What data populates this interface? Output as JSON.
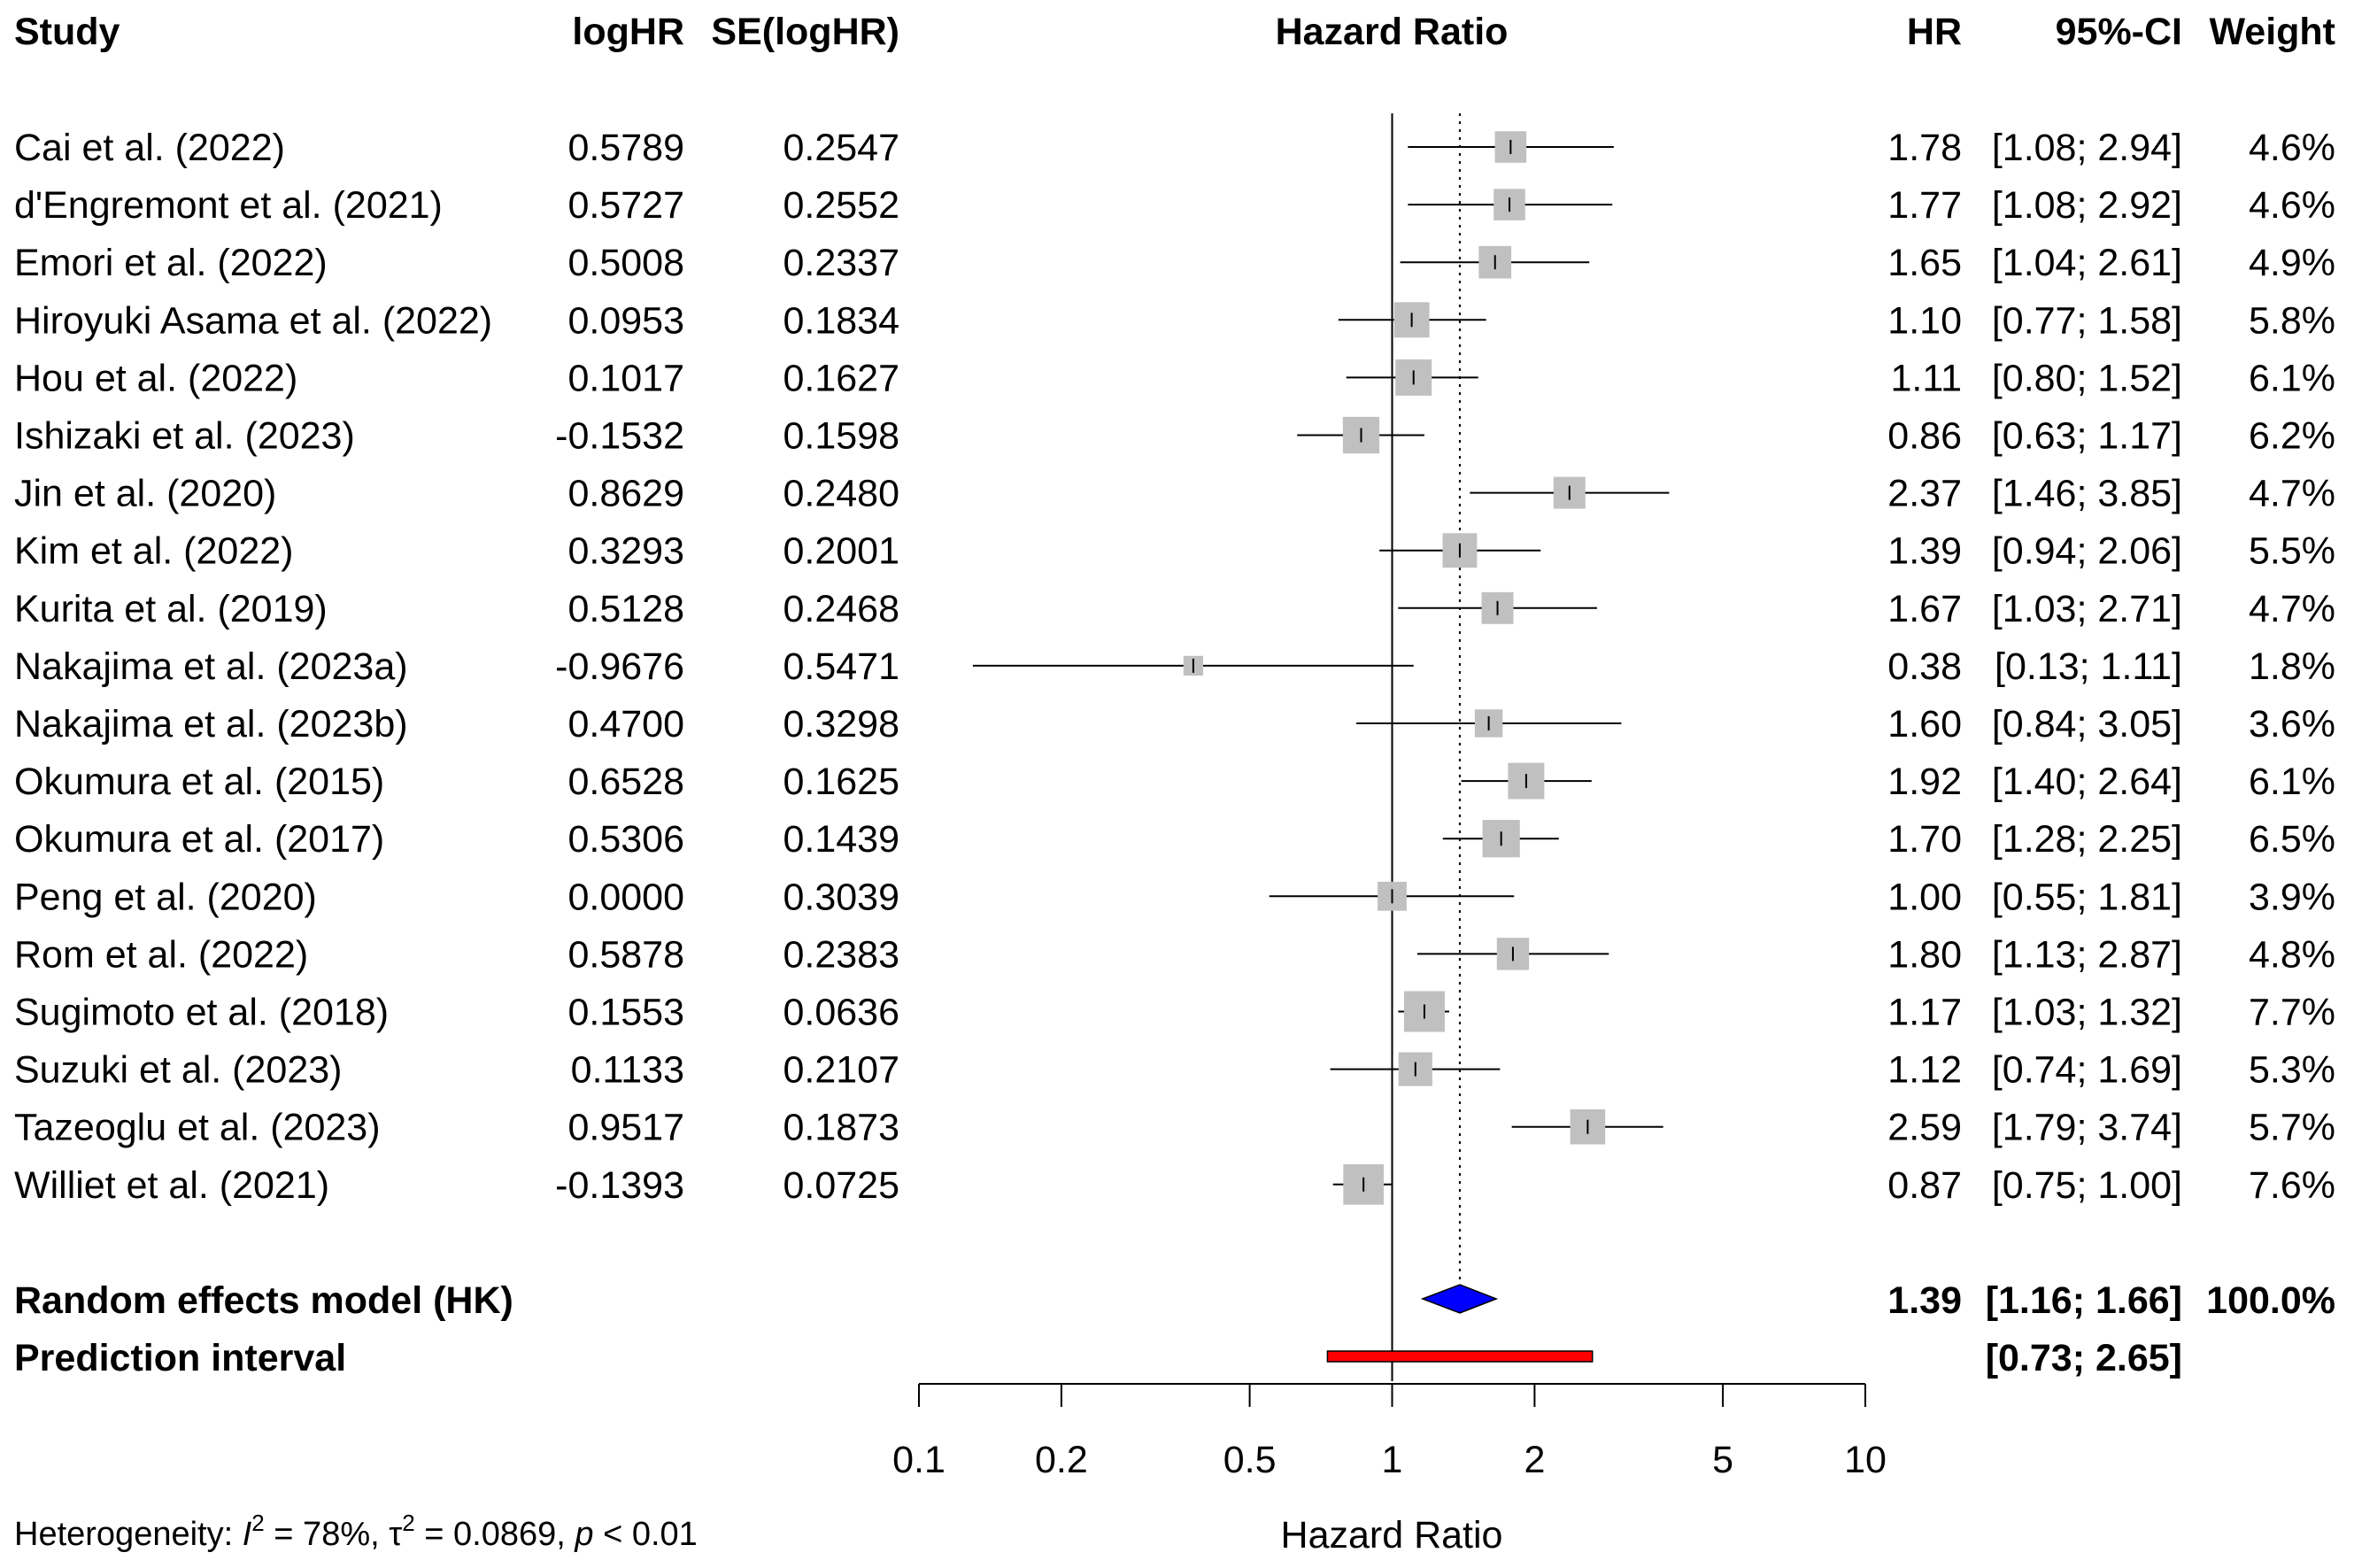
{
  "chart_data": {
    "type": "forest",
    "title": "Hazard Ratio",
    "xlabel": "Hazard Ratio",
    "xscale": "log",
    "xlim": [
      0.1,
      10
    ],
    "reference_line": 1,
    "pooled_line": 1.39,
    "ticks": [
      {
        "value": 0.1,
        "label": "0.1"
      },
      {
        "value": 0.2,
        "label": "0.2"
      },
      {
        "value": 0.5,
        "label": "0.5"
      },
      {
        "value": 1,
        "label": "1"
      },
      {
        "value": 2,
        "label": "2"
      },
      {
        "value": 5,
        "label": "5"
      },
      {
        "value": 10,
        "label": "10"
      }
    ],
    "headers": {
      "study": "Study",
      "loghr": "logHR",
      "se": "SE(logHR)",
      "plot": "Hazard Ratio",
      "hr": "HR",
      "ci": "95%-CI",
      "weight": "Weight"
    },
    "studies": [
      {
        "study": "Cai et al. (2022)",
        "loghr": "0.5789",
        "se": "0.2547",
        "hr": 1.78,
        "lo": 1.08,
        "hi": 2.94,
        "hr_text": "1.78",
        "ci_text": "[1.08; 2.94]",
        "weight": 4.6,
        "weight_text": "4.6%"
      },
      {
        "study": "d'Engremont et al. (2021)",
        "loghr": "0.5727",
        "se": "0.2552",
        "hr": 1.77,
        "lo": 1.08,
        "hi": 2.92,
        "hr_text": "1.77",
        "ci_text": "[1.08; 2.92]",
        "weight": 4.6,
        "weight_text": "4.6%"
      },
      {
        "study": "Emori et al. (2022)",
        "loghr": "0.5008",
        "se": "0.2337",
        "hr": 1.65,
        "lo": 1.04,
        "hi": 2.61,
        "hr_text": "1.65",
        "ci_text": "[1.04; 2.61]",
        "weight": 4.9,
        "weight_text": "4.9%"
      },
      {
        "study": "Hiroyuki Asama et al. (2022)",
        "loghr": "0.0953",
        "se": "0.1834",
        "hr": 1.1,
        "lo": 0.77,
        "hi": 1.58,
        "hr_text": "1.10",
        "ci_text": "[0.77; 1.58]",
        "weight": 5.8,
        "weight_text": "5.8%"
      },
      {
        "study": "Hou et al. (2022)",
        "loghr": "0.1017",
        "se": "0.1627",
        "hr": 1.11,
        "lo": 0.8,
        "hi": 1.52,
        "hr_text": "1.11",
        "ci_text": "[0.80; 1.52]",
        "weight": 6.1,
        "weight_text": "6.1%"
      },
      {
        "study": "Ishizaki et al. (2023)",
        "loghr": "-0.1532",
        "se": "0.1598",
        "hr": 0.86,
        "lo": 0.63,
        "hi": 1.17,
        "hr_text": "0.86",
        "ci_text": "[0.63; 1.17]",
        "weight": 6.2,
        "weight_text": "6.2%"
      },
      {
        "study": "Jin et al. (2020)",
        "loghr": "0.8629",
        "se": "0.2480",
        "hr": 2.37,
        "lo": 1.46,
        "hi": 3.85,
        "hr_text": "2.37",
        "ci_text": "[1.46; 3.85]",
        "weight": 4.7,
        "weight_text": "4.7%"
      },
      {
        "study": "Kim et al. (2022)",
        "loghr": "0.3293",
        "se": "0.2001",
        "hr": 1.39,
        "lo": 0.94,
        "hi": 2.06,
        "hr_text": "1.39",
        "ci_text": "[0.94; 2.06]",
        "weight": 5.5,
        "weight_text": "5.5%"
      },
      {
        "study": "Kurita et al. (2019)",
        "loghr": "0.5128",
        "se": "0.2468",
        "hr": 1.67,
        "lo": 1.03,
        "hi": 2.71,
        "hr_text": "1.67",
        "ci_text": "[1.03; 2.71]",
        "weight": 4.7,
        "weight_text": "4.7%"
      },
      {
        "study": "Nakajima et al. (2023a)",
        "loghr": "-0.9676",
        "se": "0.5471",
        "hr": 0.38,
        "lo": 0.13,
        "hi": 1.11,
        "hr_text": "0.38",
        "ci_text": "[0.13; 1.11]",
        "weight": 1.8,
        "weight_text": "1.8%"
      },
      {
        "study": "Nakajima et al. (2023b)",
        "loghr": "0.4700",
        "se": "0.3298",
        "hr": 1.6,
        "lo": 0.84,
        "hi": 3.05,
        "hr_text": "1.60",
        "ci_text": "[0.84; 3.05]",
        "weight": 3.6,
        "weight_text": "3.6%"
      },
      {
        "study": "Okumura et al. (2015)",
        "loghr": "0.6528",
        "se": "0.1625",
        "hr": 1.92,
        "lo": 1.4,
        "hi": 2.64,
        "hr_text": "1.92",
        "ci_text": "[1.40; 2.64]",
        "weight": 6.1,
        "weight_text": "6.1%"
      },
      {
        "study": "Okumura et al. (2017)",
        "loghr": "0.5306",
        "se": "0.1439",
        "hr": 1.7,
        "lo": 1.28,
        "hi": 2.25,
        "hr_text": "1.70",
        "ci_text": "[1.28; 2.25]",
        "weight": 6.5,
        "weight_text": "6.5%"
      },
      {
        "study": "Peng et al. (2020)",
        "loghr": "0.0000",
        "se": "0.3039",
        "hr": 1.0,
        "lo": 0.55,
        "hi": 1.81,
        "hr_text": "1.00",
        "ci_text": "[0.55; 1.81]",
        "weight": 3.9,
        "weight_text": "3.9%"
      },
      {
        "study": "Rom et al. (2022)",
        "loghr": "0.5878",
        "se": "0.2383",
        "hr": 1.8,
        "lo": 1.13,
        "hi": 2.87,
        "hr_text": "1.80",
        "ci_text": "[1.13; 2.87]",
        "weight": 4.8,
        "weight_text": "4.8%"
      },
      {
        "study": "Sugimoto et al. (2018)",
        "loghr": "0.1553",
        "se": "0.0636",
        "hr": 1.17,
        "lo": 1.03,
        "hi": 1.32,
        "hr_text": "1.17",
        "ci_text": "[1.03; 1.32]",
        "weight": 7.7,
        "weight_text": "7.7%"
      },
      {
        "study": "Suzuki et al. (2023)",
        "loghr": "0.1133",
        "se": "0.2107",
        "hr": 1.12,
        "lo": 0.74,
        "hi": 1.69,
        "hr_text": "1.12",
        "ci_text": "[0.74; 1.69]",
        "weight": 5.3,
        "weight_text": "5.3%"
      },
      {
        "study": "Tazeoglu et al. (2023)",
        "loghr": "0.9517",
        "se": "0.1873",
        "hr": 2.59,
        "lo": 1.79,
        "hi": 3.74,
        "hr_text": "2.59",
        "ci_text": "[1.79; 3.74]",
        "weight": 5.7,
        "weight_text": "5.7%"
      },
      {
        "study": "Williet et al. (2021)",
        "loghr": "-0.1393",
        "se": "0.0725",
        "hr": 0.87,
        "lo": 0.75,
        "hi": 1.0,
        "hr_text": "0.87",
        "ci_text": "[0.75; 1.00]",
        "weight": 7.6,
        "weight_text": "7.6%"
      }
    ],
    "pooled": {
      "label": "Random effects model (HK)",
      "hr": 1.39,
      "lo": 1.16,
      "hi": 1.66,
      "hr_text": "1.39",
      "ci_text": "[1.16; 1.66]",
      "weight_text": "100.0%",
      "color": "#0000ff"
    },
    "prediction": {
      "label": "Prediction interval",
      "lo": 0.73,
      "hi": 2.65,
      "ci_text": "[0.73; 2.65]",
      "color": "#ff0000"
    },
    "heterogeneity": {
      "prefix": "Heterogeneity: ",
      "i2_symbol": "I",
      "i2_value": " = 78%, ",
      "tau_symbol": "τ",
      "tau_value": " = 0.0869, ",
      "p_symbol": "p",
      "p_value": " < 0.01"
    },
    "colors": {
      "box": "#c0c0c0",
      "line": "#000000"
    }
  }
}
